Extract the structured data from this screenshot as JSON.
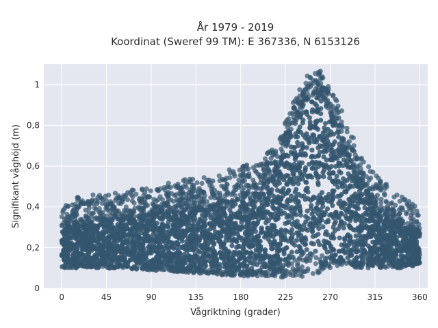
{
  "chart_data": {
    "type": "scatter",
    "title": "År 1979 - 2019",
    "subtitle": "Koordinat (Sweref 99 TM): E 367336, N 6153126",
    "xlabel": "Vågriktning (grader)",
    "ylabel": "Signifikant våghöjd (m)",
    "xlim": [
      -18,
      368
    ],
    "ylim": [
      0,
      1.1
    ],
    "x_ticks": [
      0,
      45,
      90,
      135,
      180,
      225,
      270,
      315,
      360
    ],
    "x_tick_labels": [
      "0",
      "45",
      "90",
      "135",
      "180",
      "225",
      "270",
      "315",
      "360"
    ],
    "y_ticks": [
      0,
      0.2,
      0.4,
      0.6,
      0.8,
      1.0
    ],
    "y_tick_labels": [
      "0",
      "0,2",
      "0,4",
      "0,6",
      "0,8",
      "1"
    ],
    "grid": true,
    "legend": "none",
    "marker_color": "#34566e",
    "background_color": "#e5e7f0",
    "envelope": {
      "x": [
        0,
        20,
        45,
        90,
        120,
        150,
        180,
        200,
        215,
        225,
        235,
        245,
        255,
        260,
        265,
        275,
        285,
        300,
        315,
        330,
        345,
        360
      ],
      "y_max": [
        0.44,
        0.46,
        0.46,
        0.5,
        0.53,
        0.56,
        0.6,
        0.64,
        0.7,
        0.82,
        0.95,
        1.04,
        1.06,
        1.07,
        1.05,
        0.94,
        0.84,
        0.66,
        0.56,
        0.5,
        0.46,
        0.42
      ],
      "y_min": [
        0.1,
        0.1,
        0.1,
        0.09,
        0.08,
        0.07,
        0.06,
        0.06,
        0.06,
        0.05,
        0.05,
        0.06,
        0.07,
        0.08,
        0.09,
        0.1,
        0.11,
        0.1,
        0.1,
        0.1,
        0.1,
        0.12
      ],
      "y_core_top": [
        0.3,
        0.32,
        0.34,
        0.36,
        0.38,
        0.4,
        0.44,
        0.48,
        0.56,
        0.68,
        0.82,
        0.92,
        0.96,
        0.96,
        0.92,
        0.8,
        0.68,
        0.5,
        0.4,
        0.34,
        0.3,
        0.28
      ],
      "y_core_bottom": [
        0.12,
        0.12,
        0.12,
        0.11,
        0.1,
        0.09,
        0.08,
        0.09,
        0.1,
        0.12,
        0.14,
        0.16,
        0.18,
        0.18,
        0.17,
        0.15,
        0.14,
        0.13,
        0.13,
        0.12,
        0.12,
        0.13
      ]
    }
  }
}
